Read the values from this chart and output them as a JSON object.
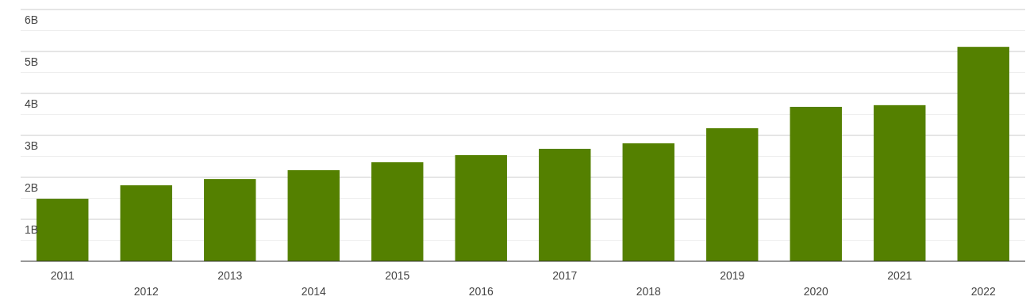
{
  "chart_data": {
    "type": "bar",
    "categories": [
      "2011",
      "2012",
      "2013",
      "2014",
      "2015",
      "2016",
      "2017",
      "2018",
      "2019",
      "2020",
      "2021",
      "2022"
    ],
    "values": [
      1.49,
      1.81,
      1.96,
      2.17,
      2.36,
      2.53,
      2.68,
      2.81,
      3.17,
      3.68,
      3.72,
      5.11
    ],
    "color": "#548000",
    "ylim": [
      0,
      6
    ],
    "yticks": [
      {
        "value": 0.5,
        "label": null
      },
      {
        "value": 1,
        "label": "1B"
      },
      {
        "value": 1.5,
        "label": null
      },
      {
        "value": 2,
        "label": "2B"
      },
      {
        "value": 2.5,
        "label": null
      },
      {
        "value": 3,
        "label": "3B"
      },
      {
        "value": 3.5,
        "label": null
      },
      {
        "value": 4,
        "label": "4B"
      },
      {
        "value": 4.5,
        "label": null
      },
      {
        "value": 5,
        "label": "5B"
      },
      {
        "value": 5.5,
        "label": null
      },
      {
        "value": 6,
        "label": "6B"
      }
    ],
    "grid": "y"
  }
}
